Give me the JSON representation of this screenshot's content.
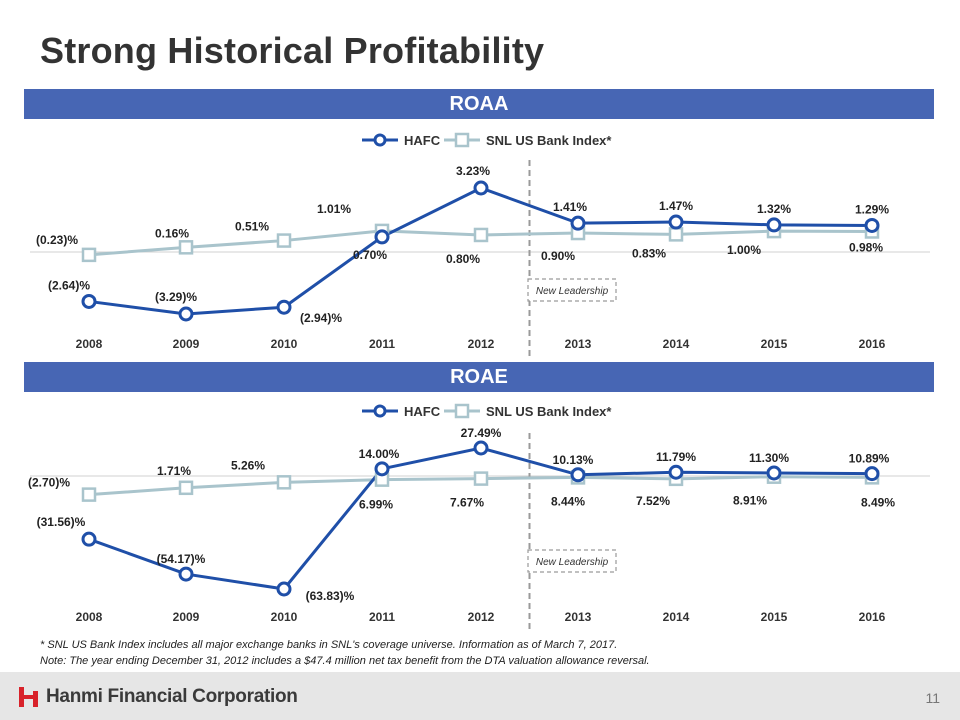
{
  "page": {
    "title": "Strong Historical Profitability",
    "footnote1": "*  SNL US Bank Index includes all major exchange banks in SNL's coverage universe. Information as of March 7, 2017.",
    "footnote2": "Note: The year ending December 31, 2012 includes a $47.4 million net tax benefit from the DTA valuation allowance reversal.",
    "company": "Hanmi Financial Corporation",
    "page_number": "11",
    "colors": {
      "band": "#4766b4",
      "hafc": "#1f4fa8",
      "snl": "#a9c4cc"
    }
  },
  "chart_data": [
    {
      "type": "line",
      "title": "ROAA",
      "categories": [
        "2008",
        "2009",
        "2010",
        "2011",
        "2012",
        "2013",
        "2014",
        "2015",
        "2016"
      ],
      "series": [
        {
          "name": "HAFC",
          "values": [
            -2.64,
            -3.29,
            -2.94,
            0.7,
            3.23,
            1.41,
            1.47,
            1.32,
            1.29
          ],
          "labels": [
            "(2.64)%",
            "(3.29)%",
            "(2.94)%",
            "0.70%",
            "3.23%",
            "1.41%",
            "1.47%",
            "1.32%",
            "1.29%"
          ]
        },
        {
          "name": "SNL US Bank Index*",
          "values": [
            -0.23,
            0.16,
            0.51,
            1.01,
            0.8,
            0.9,
            0.83,
            1.0,
            0.98
          ],
          "labels": [
            "(0.23)%",
            "0.16%",
            "0.51%",
            "1.01%",
            "0.80%",
            "0.90%",
            "0.83%",
            "1.00%",
            "0.98%"
          ]
        }
      ],
      "annotation": "New Leadership",
      "divider_after": "2012"
    },
    {
      "type": "line",
      "title": "ROAE",
      "categories": [
        "2008",
        "2009",
        "2010",
        "2011",
        "2012",
        "2013",
        "2014",
        "2015",
        "2016"
      ],
      "series": [
        {
          "name": "HAFC",
          "values": [
            -31.56,
            -54.17,
            -63.83,
            14.0,
            27.49,
            10.13,
            11.79,
            11.3,
            10.89
          ],
          "labels": [
            "(31.56)%",
            "(54.17)%",
            "(63.83)%",
            "14.00%",
            "27.49%",
            "10.13%",
            "11.79%",
            "11.30%",
            "10.89%"
          ]
        },
        {
          "name": "SNL US Bank Index*",
          "values": [
            -2.7,
            1.71,
            5.26,
            6.99,
            7.67,
            8.44,
            7.52,
            8.91,
            8.49
          ],
          "labels": [
            "(2.70)%",
            "1.71%",
            "5.26%",
            "6.99%",
            "7.67%",
            "8.44%",
            "7.52%",
            "8.91%",
            "8.49%"
          ]
        }
      ],
      "annotation": "New Leadership",
      "divider_after": "2012"
    }
  ]
}
